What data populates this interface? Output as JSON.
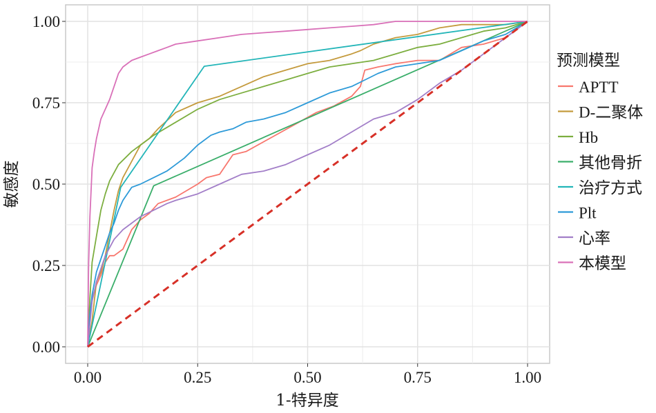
{
  "chart_data": {
    "type": "line",
    "title": "",
    "xlabel": "1-特异度",
    "ylabel": "敏感度",
    "xlim": [
      0,
      1
    ],
    "ylim": [
      0,
      1
    ],
    "xticks": [
      0,
      0.25,
      0.5,
      0.75,
      1
    ],
    "yticks": [
      0,
      0.25,
      0.5,
      0.75,
      1
    ],
    "xtick_labels": [
      "0.00",
      "0.25",
      "0.50",
      "0.75",
      "1.00"
    ],
    "ytick_labels": [
      "0.00",
      "0.25",
      "0.50",
      "0.75",
      "1.00"
    ],
    "grid": true,
    "legend_title": "预测模型",
    "legend_position": "right",
    "reference_line": {
      "name": "diagonal",
      "color": "#d73027",
      "style": "dashed",
      "x": [
        0,
        1
      ],
      "y": [
        0,
        1
      ]
    },
    "series": [
      {
        "name": "APTT",
        "color": "#f8766d",
        "x": [
          0,
          0.005,
          0.01,
          0.02,
          0.03,
          0.04,
          0.05,
          0.06,
          0.08,
          0.1,
          0.12,
          0.14,
          0.16,
          0.2,
          0.25,
          0.27,
          0.3,
          0.33,
          0.36,
          0.4,
          0.44,
          0.48,
          0.52,
          0.56,
          0.6,
          0.62,
          0.63,
          0.66,
          0.7,
          0.75,
          0.8,
          0.85,
          0.9,
          0.95,
          1
        ],
        "y": [
          0,
          0.08,
          0.15,
          0.19,
          0.22,
          0.26,
          0.28,
          0.28,
          0.3,
          0.36,
          0.39,
          0.41,
          0.44,
          0.46,
          0.5,
          0.52,
          0.53,
          0.59,
          0.6,
          0.63,
          0.66,
          0.69,
          0.72,
          0.74,
          0.77,
          0.8,
          0.85,
          0.86,
          0.87,
          0.88,
          0.88,
          0.92,
          0.93,
          0.95,
          1
        ]
      },
      {
        "name": "D-二聚体",
        "color": "#c49a3c",
        "x": [
          0,
          0.01,
          0.02,
          0.03,
          0.04,
          0.05,
          0.06,
          0.07,
          0.08,
          0.1,
          0.12,
          0.14,
          0.16,
          0.2,
          0.25,
          0.3,
          0.35,
          0.4,
          0.45,
          0.5,
          0.55,
          0.6,
          0.62,
          0.65,
          0.7,
          0.75,
          0.8,
          0.85,
          0.9,
          0.95,
          1
        ],
        "y": [
          0,
          0.08,
          0.2,
          0.23,
          0.28,
          0.35,
          0.42,
          0.48,
          0.52,
          0.57,
          0.62,
          0.64,
          0.67,
          0.72,
          0.75,
          0.77,
          0.8,
          0.83,
          0.85,
          0.87,
          0.88,
          0.9,
          0.91,
          0.93,
          0.95,
          0.96,
          0.98,
          0.99,
          0.99,
          0.99,
          1
        ]
      },
      {
        "name": "Hb",
        "color": "#7cae3f",
        "x": [
          0,
          0.005,
          0.01,
          0.02,
          0.03,
          0.04,
          0.05,
          0.07,
          0.1,
          0.12,
          0.15,
          0.2,
          0.25,
          0.3,
          0.35,
          0.4,
          0.45,
          0.5,
          0.55,
          0.6,
          0.65,
          0.7,
          0.75,
          0.8,
          0.85,
          0.9,
          0.95,
          1
        ],
        "y": [
          0,
          0.15,
          0.26,
          0.34,
          0.42,
          0.47,
          0.51,
          0.56,
          0.6,
          0.62,
          0.65,
          0.69,
          0.73,
          0.76,
          0.78,
          0.8,
          0.82,
          0.84,
          0.86,
          0.87,
          0.88,
          0.9,
          0.92,
          0.93,
          0.95,
          0.97,
          0.98,
          1
        ]
      },
      {
        "name": "其他骨折",
        "color": "#3aae6a",
        "x": [
          0,
          0.15,
          1
        ],
        "y": [
          0,
          0.495,
          1
        ]
      },
      {
        "name": "治疗方式",
        "color": "#22b5b8",
        "x": [
          0,
          0.075,
          0.265,
          1
        ],
        "y": [
          0,
          0.49,
          0.862,
          1
        ]
      },
      {
        "name": "Plt",
        "color": "#2d9ad8",
        "x": [
          0,
          0.005,
          0.01,
          0.02,
          0.03,
          0.04,
          0.05,
          0.06,
          0.07,
          0.08,
          0.1,
          0.12,
          0.15,
          0.18,
          0.2,
          0.22,
          0.25,
          0.28,
          0.3,
          0.33,
          0.36,
          0.4,
          0.45,
          0.5,
          0.55,
          0.6,
          0.63,
          0.66,
          0.7,
          0.75,
          0.8,
          0.85,
          0.9,
          0.95,
          1
        ],
        "y": [
          0,
          0.1,
          0.16,
          0.23,
          0.27,
          0.31,
          0.35,
          0.38,
          0.42,
          0.45,
          0.49,
          0.5,
          0.52,
          0.54,
          0.56,
          0.58,
          0.62,
          0.65,
          0.66,
          0.67,
          0.69,
          0.7,
          0.72,
          0.75,
          0.78,
          0.8,
          0.82,
          0.84,
          0.86,
          0.87,
          0.88,
          0.91,
          0.94,
          0.96,
          1
        ]
      },
      {
        "name": "心率",
        "color": "#a27ec8",
        "x": [
          0,
          0.01,
          0.02,
          0.04,
          0.06,
          0.08,
          0.1,
          0.12,
          0.15,
          0.18,
          0.2,
          0.25,
          0.3,
          0.35,
          0.4,
          0.45,
          0.5,
          0.55,
          0.6,
          0.65,
          0.7,
          0.75,
          0.8,
          0.85,
          0.9,
          0.95,
          1
        ],
        "y": [
          0,
          0.14,
          0.2,
          0.28,
          0.33,
          0.36,
          0.38,
          0.4,
          0.42,
          0.44,
          0.45,
          0.47,
          0.5,
          0.53,
          0.54,
          0.56,
          0.59,
          0.62,
          0.66,
          0.7,
          0.72,
          0.76,
          0.81,
          0.85,
          0.9,
          0.95,
          1
        ]
      },
      {
        "name": "本模型",
        "color": "#d970b8",
        "x": [
          0,
          0.002,
          0.005,
          0.01,
          0.015,
          0.02,
          0.025,
          0.03,
          0.04,
          0.05,
          0.06,
          0.07,
          0.08,
          0.09,
          0.1,
          0.12,
          0.14,
          0.16,
          0.18,
          0.2,
          0.25,
          0.3,
          0.35,
          0.4,
          0.45,
          0.5,
          0.55,
          0.6,
          0.65,
          0.7,
          0.8,
          0.9,
          1
        ],
        "y": [
          0,
          0.25,
          0.4,
          0.55,
          0.6,
          0.64,
          0.67,
          0.7,
          0.73,
          0.76,
          0.8,
          0.84,
          0.86,
          0.87,
          0.88,
          0.89,
          0.9,
          0.91,
          0.92,
          0.93,
          0.94,
          0.95,
          0.96,
          0.965,
          0.97,
          0.975,
          0.98,
          0.985,
          0.99,
          1,
          1,
          1,
          1
        ]
      }
    ]
  }
}
